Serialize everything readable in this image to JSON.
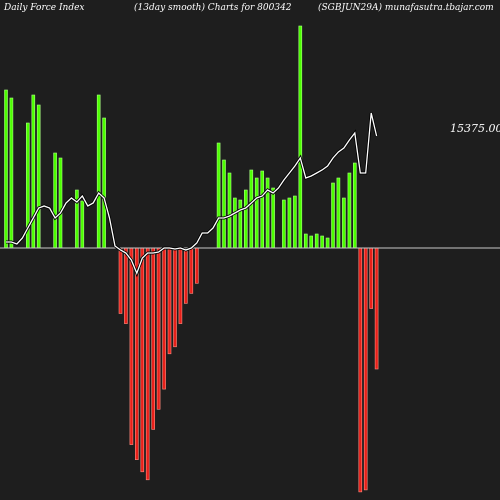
{
  "header": {
    "left": "Daily Force  Index",
    "middle": "(13day smooth) Charts for 800342",
    "right": "(SGBJUN29A) munafasutra.tbajar.com"
  },
  "colors": {
    "background": "#1e1e1e",
    "positive": "#4cff00",
    "negative": "#e8201a",
    "zero_line": "#c8c8c8",
    "smooth_line": "#ffffff"
  },
  "chart_data": {
    "type": "bar",
    "title": "",
    "xlabel": "",
    "ylabel": "",
    "last_value_label": "15375.00",
    "ylim": [
      -250,
      222
    ],
    "force_index": [
      158,
      150,
      0,
      0,
      125,
      153,
      143,
      0,
      0,
      95,
      90,
      0,
      0,
      58,
      47,
      0,
      0,
      153,
      130,
      0,
      0,
      -65,
      -75,
      -195,
      -210,
      -222,
      -230,
      -180,
      -160,
      -140,
      -105,
      -98,
      -75,
      -55,
      -45,
      -35,
      0,
      0,
      0,
      105,
      88,
      75,
      50,
      48,
      58,
      78,
      70,
      77,
      70,
      60,
      0,
      48,
      50,
      52,
      222,
      14,
      12,
      14,
      12,
      10,
      65,
      70,
      50,
      75,
      85,
      -242,
      -240,
      -60,
      -120
    ],
    "smooth_line": [
      6,
      6,
      4,
      10,
      20,
      30,
      40,
      42,
      40,
      30,
      35,
      45,
      50,
      46,
      52,
      42,
      45,
      55,
      50,
      30,
      2,
      -2,
      -5,
      -12,
      -25,
      -10,
      -5,
      -5,
      -4,
      0,
      0,
      -1,
      0,
      -2,
      0,
      5,
      15,
      15,
      20,
      30,
      30,
      32,
      35,
      38,
      40,
      45,
      50,
      52,
      58,
      55,
      60,
      68,
      75,
      82,
      90,
      70,
      72,
      75,
      78,
      82,
      90,
      96,
      100,
      108,
      115,
      75,
      75,
      135,
      112
    ]
  }
}
